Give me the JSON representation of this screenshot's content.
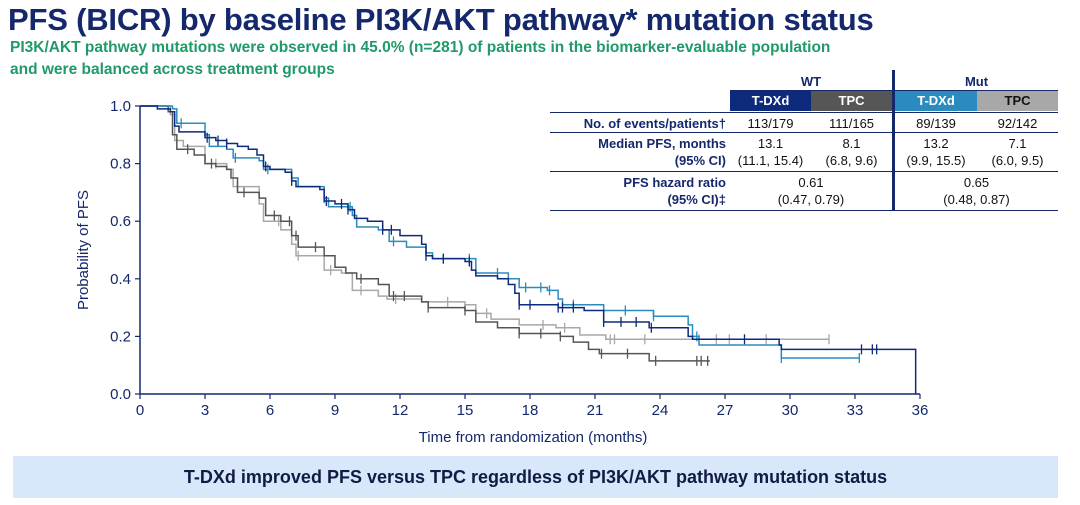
{
  "title": "PFS (BICR) by baseline PI3K/AKT pathway* mutation status",
  "subtitle_lines": [
    "PI3K/AKT pathway mutations were observed in 45.0% (n=281) of patients in the biomarker-evaluable population",
    "and were balanced across treatment groups"
  ],
  "table": {
    "groups": [
      "WT",
      "Mut"
    ],
    "arms": [
      {
        "label": "T-DXd",
        "color": "#0e2a7c",
        "text_color": "#ffffff"
      },
      {
        "label": "TPC",
        "color": "#565656",
        "text_color": "#ffffff"
      },
      {
        "label": "T-DXd",
        "color": "#2b8bbf",
        "text_color": "#ffffff"
      },
      {
        "label": "TPC",
        "color": "#a8a8a8",
        "text_color": "#111111"
      }
    ],
    "rows": [
      {
        "label": "No. of events/patients†",
        "values": [
          "113/179",
          "111/165",
          "89/139",
          "92/142"
        ]
      },
      {
        "label": "Median PFS, months",
        "label2": "(95% CI)",
        "values": [
          "13.1",
          "8.1",
          "13.2",
          "7.1"
        ],
        "values2": [
          "(11.1, 15.4)",
          "(6.8, 9.6)",
          "(9.9, 15.5)",
          "(6.0, 9.5)"
        ]
      },
      {
        "label": "PFS hazard ratio",
        "label2": "(95% CI)‡",
        "values": [
          "0.61",
          "0.65"
        ],
        "values2": [
          "(0.47, 0.79)",
          "(0.48, 0.87)"
        ]
      }
    ]
  },
  "banner": "T-DXd improved PFS versus TPC regardless of PI3K/AKT pathway mutation status",
  "chart_data": {
    "type": "line",
    "subtype": "kaplan-meier step",
    "xlabel": "Time from randomization (months)",
    "ylabel": "Probability of PFS",
    "xlim": [
      0,
      36
    ],
    "ylim": [
      0,
      1.0
    ],
    "xticks": [
      0,
      3,
      6,
      9,
      12,
      15,
      18,
      21,
      24,
      27,
      30,
      33,
      36
    ],
    "yticks": [
      "0.0",
      "0.2",
      "0.4",
      "0.6",
      "0.8",
      "1.0"
    ],
    "grid": false,
    "series": [
      {
        "group": "Mut TPC",
        "color": "#a8a8a8",
        "points": [
          [
            0,
            1
          ],
          [
            1.4,
            0.97
          ],
          [
            1.6,
            0.88
          ],
          [
            2,
            0.86
          ],
          [
            3,
            0.8
          ],
          [
            4,
            0.78
          ],
          [
            4.3,
            0.72
          ],
          [
            5.5,
            0.66
          ],
          [
            5.7,
            0.6
          ],
          [
            6.5,
            0.57
          ],
          [
            7,
            0.52
          ],
          [
            7.2,
            0.48
          ],
          [
            8.5,
            0.43
          ],
          [
            9.3,
            0.42
          ],
          [
            9.8,
            0.36
          ],
          [
            11,
            0.34
          ],
          [
            11.4,
            0.33
          ],
          [
            13,
            0.32
          ],
          [
            15,
            0.31
          ],
          [
            15.5,
            0.28
          ],
          [
            16.2,
            0.26
          ],
          [
            17.5,
            0.24
          ],
          [
            19.2,
            0.23
          ],
          [
            20.3,
            0.205
          ],
          [
            21.5,
            0.19
          ],
          [
            31.8,
            0.19
          ]
        ],
        "censored": [
          3.5,
          4.5,
          6.4,
          7.3,
          8.8,
          10.2,
          11.8,
          14.2,
          16,
          18.6,
          19.6,
          21.7,
          21.9,
          23.3,
          25.8,
          26.6,
          27.2,
          28.9,
          31.8
        ]
      },
      {
        "group": "WT TPC",
        "color": "#555555",
        "points": [
          [
            0,
            1
          ],
          [
            1.3,
            0.98
          ],
          [
            1.5,
            0.9
          ],
          [
            1.7,
            0.85
          ],
          [
            2.5,
            0.83
          ],
          [
            3,
            0.8
          ],
          [
            3.5,
            0.79
          ],
          [
            4,
            0.78
          ],
          [
            4.2,
            0.75
          ],
          [
            4.5,
            0.7
          ],
          [
            5.5,
            0.68
          ],
          [
            5.8,
            0.62
          ],
          [
            6.5,
            0.6
          ],
          [
            7,
            0.55
          ],
          [
            7.3,
            0.51
          ],
          [
            8.5,
            0.48
          ],
          [
            9,
            0.44
          ],
          [
            9.5,
            0.42
          ],
          [
            10,
            0.4
          ],
          [
            11,
            0.38
          ],
          [
            11.5,
            0.34
          ],
          [
            13,
            0.32
          ],
          [
            13.3,
            0.3
          ],
          [
            15,
            0.29
          ],
          [
            15.5,
            0.25
          ],
          [
            16.5,
            0.23
          ],
          [
            17.5,
            0.21
          ],
          [
            19.4,
            0.2
          ],
          [
            20,
            0.18
          ],
          [
            20.7,
            0.155
          ],
          [
            21.2,
            0.14
          ],
          [
            23.5,
            0.115
          ],
          [
            26.3,
            0.115
          ]
        ],
        "censored": [
          2.2,
          3.3,
          4.8,
          6.2,
          6.9,
          7.2,
          8.1,
          10.2,
          11.7,
          12.2,
          13.3,
          15,
          17.5,
          18.5,
          19.4,
          21.3,
          22.5,
          23.8,
          25.7,
          25.9,
          26.2
        ]
      },
      {
        "group": "Mut T-DXd",
        "color": "#2b8bbf",
        "points": [
          [
            0,
            1
          ],
          [
            1.5,
            0.99
          ],
          [
            1.7,
            0.94
          ],
          [
            3,
            0.9
          ],
          [
            3.2,
            0.86
          ],
          [
            4,
            0.85
          ],
          [
            4.3,
            0.82
          ],
          [
            5.5,
            0.81
          ],
          [
            5.7,
            0.78
          ],
          [
            7,
            0.75
          ],
          [
            7.3,
            0.72
          ],
          [
            8.5,
            0.68
          ],
          [
            8.7,
            0.65
          ],
          [
            9.8,
            0.62
          ],
          [
            10,
            0.58
          ],
          [
            11,
            0.57
          ],
          [
            11.5,
            0.53
          ],
          [
            12.3,
            0.51
          ],
          [
            13.2,
            0.49
          ],
          [
            13.5,
            0.47
          ],
          [
            15.5,
            0.42
          ],
          [
            17,
            0.4
          ],
          [
            17.5,
            0.37
          ],
          [
            18.8,
            0.36
          ],
          [
            19.3,
            0.33
          ],
          [
            19.5,
            0.31
          ],
          [
            21.4,
            0.29
          ],
          [
            23.7,
            0.27
          ],
          [
            25.3,
            0.24
          ],
          [
            25.5,
            0.2
          ],
          [
            25.8,
            0.17
          ],
          [
            29.6,
            0.125
          ],
          [
            33.2,
            0.125
          ]
        ],
        "censored": [
          1.9,
          4.4,
          5.9,
          7,
          8.5,
          9.7,
          11.7,
          14,
          15.2,
          16.5,
          17.8,
          18.5,
          18.9,
          20,
          21.4,
          22.4,
          23.7,
          25.7,
          29.6,
          33.2
        ]
      },
      {
        "group": "WT T-DXd",
        "color": "#0e2a7c",
        "points": [
          [
            0,
            1
          ],
          [
            0.8,
            0.99
          ],
          [
            1.4,
            0.98
          ],
          [
            1.6,
            0.93
          ],
          [
            1.8,
            0.91
          ],
          [
            3,
            0.89
          ],
          [
            3.5,
            0.88
          ],
          [
            4,
            0.87
          ],
          [
            4.5,
            0.86
          ],
          [
            5,
            0.85
          ],
          [
            5.4,
            0.83
          ],
          [
            5.7,
            0.79
          ],
          [
            6,
            0.78
          ],
          [
            6.7,
            0.77
          ],
          [
            7,
            0.74
          ],
          [
            7.2,
            0.72
          ],
          [
            8.3,
            0.71
          ],
          [
            8.5,
            0.67
          ],
          [
            9,
            0.66
          ],
          [
            9.6,
            0.64
          ],
          [
            9.9,
            0.61
          ],
          [
            10.5,
            0.6
          ],
          [
            11.2,
            0.57
          ],
          [
            12,
            0.55
          ],
          [
            13,
            0.52
          ],
          [
            13.2,
            0.48
          ],
          [
            13.5,
            0.47
          ],
          [
            15,
            0.46
          ],
          [
            15.3,
            0.43
          ],
          [
            15.5,
            0.41
          ],
          [
            16.5,
            0.4
          ],
          [
            17,
            0.38
          ],
          [
            17.3,
            0.35
          ],
          [
            17.5,
            0.31
          ],
          [
            19.3,
            0.3
          ],
          [
            20.5,
            0.29
          ],
          [
            21.4,
            0.25
          ],
          [
            23.5,
            0.23
          ],
          [
            25.3,
            0.2
          ],
          [
            25.5,
            0.19
          ],
          [
            29.5,
            0.17
          ],
          [
            29.6,
            0.155
          ],
          [
            35.8,
            0.155
          ],
          [
            35.8,
            0
          ]
        ],
        "censored": [
          3.1,
          3.6,
          4,
          5.8,
          7,
          8.6,
          9.3,
          9.6,
          11.2,
          11.6,
          13.2,
          14,
          15.2,
          17.5,
          18,
          19.3,
          19.5,
          20,
          21.4,
          22.2,
          22.9,
          23.6,
          27.9,
          33.3,
          33.8,
          34
        ]
      }
    ]
  }
}
